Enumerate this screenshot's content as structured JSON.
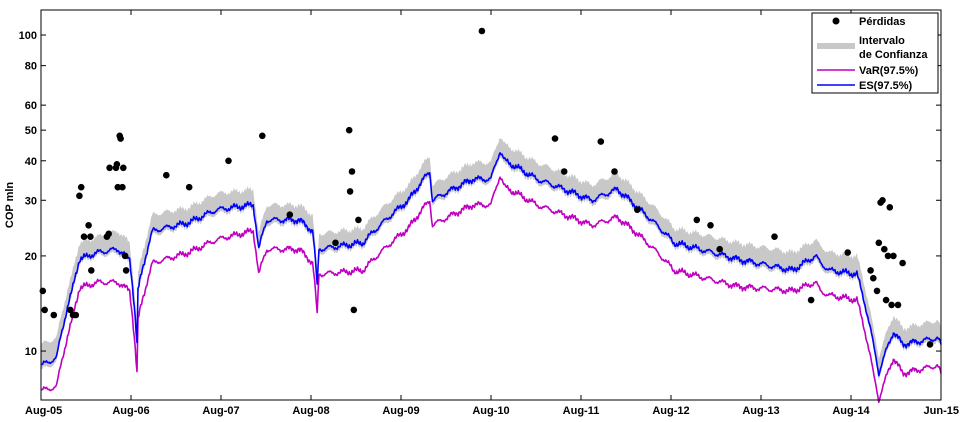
{
  "chart_data": {
    "type": "line",
    "ylabel": "COP mln",
    "yscale": "log",
    "ylim": [
      7,
      120
    ],
    "yticks": [
      10,
      20,
      30,
      40,
      50,
      60,
      80,
      100
    ],
    "xlim": [
      "2005-08",
      "2015-06"
    ],
    "xticks": [
      "Aug-05",
      "Aug-06",
      "Aug-07",
      "Aug-08",
      "Aug-09",
      "Aug-10",
      "Aug-11",
      "Aug-12",
      "Aug-13",
      "Aug-14",
      "Jun-15"
    ],
    "grid": false,
    "legend_position": "top-right",
    "colors": {
      "losses": "#000000",
      "ci": "#c8c8c8",
      "var": "#c000c0",
      "es": "#0000ff"
    },
    "series": [
      {
        "name": "VaR(97.5%)",
        "x": [
          2005.58,
          2005.75,
          2005.92,
          2006.0,
          2006.2,
          2006.42,
          2006.55,
          2006.63,
          2006.64,
          2006.8,
          2007.2,
          2007.5,
          2007.9,
          2007.96,
          2008.05,
          2008.4,
          2008.55,
          2008.6,
          2008.62,
          2009.1,
          2009.6,
          2009.83,
          2009.86,
          2010.3,
          2010.5,
          2010.6,
          2010.65,
          2011.0,
          2011.6,
          2011.88,
          2012.1,
          2012.5,
          2013.2,
          2013.8,
          2014.05,
          2014.1,
          2014.2,
          2014.5,
          2014.68,
          2014.74,
          2014.9,
          2015.0,
          2015.38,
          2015.42
        ],
        "values": [
          7.5,
          7.7,
          12.5,
          15.8,
          16.5,
          16.5,
          15.5,
          8.5,
          12.5,
          19,
          20.5,
          22.5,
          24,
          17.5,
          21,
          21,
          19,
          13,
          17.5,
          18,
          24.5,
          30,
          25,
          29,
          29,
          36,
          33,
          29,
          25,
          26.5,
          23.5,
          18,
          16,
          15.5,
          16.5,
          15.5,
          15,
          14.5,
          8.5,
          7,
          9.5,
          8.5,
          9,
          8.5
        ]
      },
      {
        "name": "ES(97.5%)",
        "x": [
          2005.58,
          2005.75,
          2005.92,
          2006.0,
          2006.2,
          2006.42,
          2006.55,
          2006.63,
          2006.64,
          2006.8,
          2007.2,
          2007.5,
          2007.9,
          2007.96,
          2008.05,
          2008.4,
          2008.55,
          2008.6,
          2008.62,
          2009.1,
          2009.6,
          2009.83,
          2009.86,
          2010.3,
          2010.5,
          2010.6,
          2010.65,
          2011.0,
          2011.6,
          2011.88,
          2012.1,
          2012.5,
          2013.2,
          2013.8,
          2014.05,
          2014.1,
          2014.2,
          2014.5,
          2014.68,
          2014.74,
          2014.9,
          2015.0,
          2015.38,
          2015.42
        ],
        "values": [
          9,
          9.5,
          15.5,
          19.5,
          20.5,
          21,
          19.5,
          10.5,
          15.5,
          24,
          25.5,
          28,
          29,
          21,
          26,
          26,
          24,
          16,
          21,
          22,
          30,
          37,
          30,
          35,
          35,
          43,
          40,
          35,
          30,
          32.5,
          28.5,
          22,
          19.5,
          18,
          20,
          19,
          18,
          17.5,
          10.5,
          8.5,
          11.5,
          10.5,
          11,
          10.5
        ]
      },
      {
        "name": "Intervalo de Confianza",
        "x": [
          2005.58,
          2005.75,
          2005.92,
          2006.0,
          2006.2,
          2006.42,
          2006.55,
          2006.63,
          2006.64,
          2006.8,
          2007.2,
          2007.5,
          2007.9,
          2007.96,
          2008.05,
          2008.4,
          2008.55,
          2008.6,
          2008.62,
          2009.1,
          2009.6,
          2009.83,
          2009.86,
          2010.3,
          2010.5,
          2010.6,
          2010.65,
          2011.0,
          2011.6,
          2011.88,
          2012.1,
          2012.5,
          2013.2,
          2013.8,
          2014.05,
          2014.1,
          2014.2,
          2014.5,
          2014.68,
          2014.74,
          2014.9,
          2015.0,
          2015.38,
          2015.42
        ],
        "lower": [
          8.7,
          9.2,
          15,
          19,
          20,
          20.4,
          19,
          10.2,
          15,
          23.3,
          24.8,
          27.2,
          28.2,
          20.4,
          25.2,
          25.2,
          23.3,
          15.5,
          20.4,
          21.4,
          29.1,
          35.9,
          29.1,
          34,
          34,
          41.7,
          38.8,
          34,
          29.1,
          31.5,
          27.6,
          21.4,
          18.9,
          17.5,
          19.4,
          18.4,
          17.5,
          17,
          10.2,
          8.2,
          11.2,
          10.2,
          10.7,
          10.2
        ],
        "upper": [
          10.5,
          11,
          17.5,
          22,
          23,
          24,
          22,
          11.8,
          17.5,
          27,
          28.5,
          31.5,
          32.5,
          23.5,
          29,
          29,
          27,
          17.8,
          23.5,
          24.5,
          33.5,
          41.5,
          33.5,
          39.5,
          39.5,
          48,
          45,
          39.5,
          33.5,
          36.5,
          32,
          24.5,
          22,
          20.5,
          22.5,
          21.5,
          20.5,
          20,
          11.8,
          9.6,
          13,
          11.8,
          12.5,
          11.8
        ]
      }
    ],
    "losses": {
      "name": "Pérdidas",
      "x": [
        2005.6,
        2005.62,
        2005.72,
        2005.9,
        2005.93,
        2005.96,
        2006.0,
        2006.02,
        2006.05,
        2006.1,
        2006.12,
        2006.13,
        2006.3,
        2006.32,
        2006.33,
        2006.4,
        2006.41,
        2006.42,
        2006.44,
        2006.45,
        2006.47,
        2006.48,
        2006.5,
        2006.51,
        2006.95,
        2007.2,
        2007.63,
        2008.0,
        2008.3,
        2008.8,
        2008.95,
        2008.96,
        2008.98,
        2009.0,
        2009.05,
        2010.4,
        2011.2,
        2011.3,
        2011.7,
        2011.85,
        2012.1,
        2012.75,
        2012.9,
        2013.0,
        2013.6,
        2014.0,
        2014.4,
        2014.65,
        2014.68,
        2014.72,
        2014.74,
        2014.76,
        2014.78,
        2014.8,
        2014.82,
        2014.84,
        2014.86,
        2014.88,
        2014.9,
        2014.95,
        2015.0,
        2015.3
      ],
      "values": [
        15.5,
        13.5,
        13,
        13.5,
        13,
        13,
        31,
        33,
        23,
        25,
        23,
        18,
        23,
        23.5,
        38,
        38,
        39,
        33,
        48,
        47,
        33,
        38,
        20,
        18,
        36,
        33,
        40,
        48,
        27,
        22,
        50,
        32,
        37,
        13.5,
        26,
        103,
        47,
        37,
        46,
        37,
        28,
        26,
        25,
        21,
        23,
        14.5,
        20.5,
        18,
        17,
        15.5,
        22,
        29.5,
        30,
        21,
        14.5,
        20,
        28.5,
        14,
        20,
        14,
        19,
        10.5
      ]
    }
  },
  "legend": {
    "losses": "Pérdidas",
    "ci_line1": "Intervalo",
    "ci_line2": "de Confianza",
    "var": "VaR(97.5%)",
    "es": "ES(97.5%)"
  }
}
